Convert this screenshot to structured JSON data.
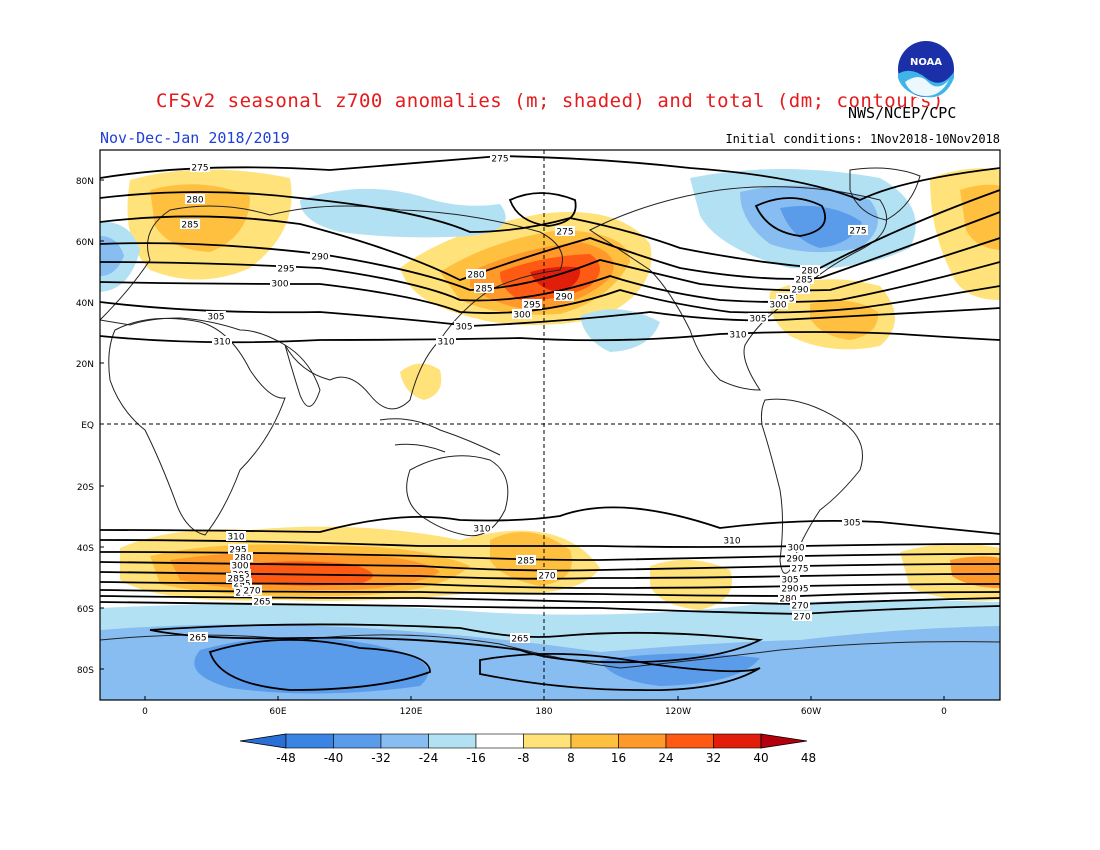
{
  "header": {
    "title": "CFSv2 seasonal z700 anomalies (m; shaded) and total (dm; contours)",
    "period": "Nov-Dec-Jan 2018/2019",
    "agency": "NWS/NCEP/CPC",
    "initial_conditions": "Initial conditions: 1Nov2018-10Nov2018",
    "logo_text": "NOAA"
  },
  "map": {
    "lat_labels": [
      "80N",
      "60N",
      "40N",
      "20N",
      "EQ",
      "20S",
      "40S",
      "60S",
      "80S"
    ],
    "lon_labels": [
      "0",
      "60E",
      "120E",
      "180",
      "120W",
      "60W",
      "0"
    ]
  },
  "colorbar": {
    "ticks": [
      "-48",
      "-40",
      "-32",
      "-24",
      "-16",
      "-8",
      "8",
      "16",
      "24",
      "32",
      "40",
      "48"
    ],
    "colors": [
      "#2a6fd6",
      "#3c84e4",
      "#5a9bea",
      "#87bdf0",
      "#b3e1f4",
      "#ffffff",
      "#ffe27a",
      "#ffc040",
      "#ff9a2a",
      "#ff5a14",
      "#e11e0a",
      "#b3000a"
    ]
  },
  "contour_labels": [
    {
      "text": "275"
    },
    {
      "text": "280"
    },
    {
      "text": "285"
    },
    {
      "text": "290"
    },
    {
      "text": "295"
    },
    {
      "text": "300"
    },
    {
      "text": "305"
    },
    {
      "text": "310"
    },
    {
      "text": "275"
    },
    {
      "text": "280"
    },
    {
      "text": "285"
    },
    {
      "text": "290"
    },
    {
      "text": "295"
    },
    {
      "text": "300"
    },
    {
      "text": "305"
    },
    {
      "text": "310"
    },
    {
      "text": "275"
    },
    {
      "text": "280"
    },
    {
      "text": "285"
    },
    {
      "text": "290"
    },
    {
      "text": "295"
    },
    {
      "text": "300"
    },
    {
      "text": "305"
    },
    {
      "text": "310"
    },
    {
      "text": "275"
    },
    {
      "text": "310"
    },
    {
      "text": "310"
    },
    {
      "text": "310"
    },
    {
      "text": "305"
    },
    {
      "text": "300"
    },
    {
      "text": "295"
    },
    {
      "text": "290"
    },
    {
      "text": "285"
    },
    {
      "text": "280"
    },
    {
      "text": "275"
    },
    {
      "text": "270"
    },
    {
      "text": "305"
    },
    {
      "text": "300"
    },
    {
      "text": "295"
    },
    {
      "text": "305"
    },
    {
      "text": "300"
    },
    {
      "text": "295"
    },
    {
      "text": "290"
    },
    {
      "text": "285"
    },
    {
      "text": "280"
    },
    {
      "text": "275"
    },
    {
      "text": "270"
    },
    {
      "text": "265"
    },
    {
      "text": "270"
    },
    {
      "text": "270"
    },
    {
      "text": "265"
    },
    {
      "text": "265"
    }
  ]
}
